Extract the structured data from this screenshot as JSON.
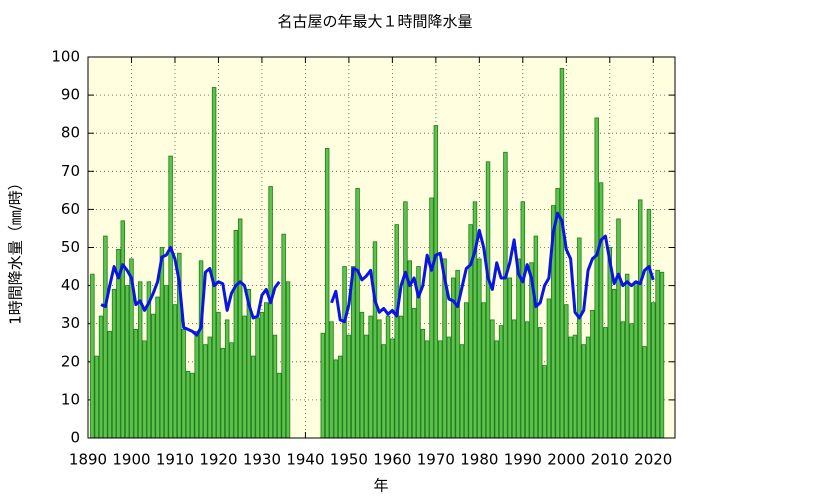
{
  "chart_data": {
    "type": "bar",
    "title": "名古屋の年最大１時間降水量",
    "x_label": "年",
    "y_label": "1時間降水量（㎜/時）",
    "xlim": [
      1890,
      2025
    ],
    "xticks": [
      1890,
      1900,
      1910,
      1920,
      1930,
      1940,
      1950,
      1960,
      1970,
      1980,
      1990,
      2000,
      2010,
      2020
    ],
    "ylim": [
      0,
      100
    ],
    "yticks": [
      0,
      10,
      20,
      30,
      40,
      50,
      60,
      70,
      80,
      90,
      100
    ],
    "grid": true,
    "background": "#ffffe0",
    "x": [
      1891,
      1892,
      1893,
      1894,
      1895,
      1896,
      1897,
      1898,
      1899,
      1900,
      1901,
      1902,
      1903,
      1904,
      1905,
      1906,
      1907,
      1908,
      1909,
      1910,
      1911,
      1912,
      1913,
      1914,
      1915,
      1916,
      1917,
      1918,
      1919,
      1920,
      1921,
      1922,
      1923,
      1924,
      1925,
      1926,
      1927,
      1928,
      1929,
      1930,
      1931,
      1932,
      1933,
      1934,
      1935,
      1936,
      1937,
      1938,
      1939,
      1940,
      1941,
      1942,
      1943,
      1944,
      1945,
      1946,
      1947,
      1948,
      1949,
      1950,
      1951,
      1952,
      1953,
      1954,
      1955,
      1956,
      1957,
      1958,
      1959,
      1960,
      1961,
      1962,
      1963,
      1964,
      1965,
      1966,
      1967,
      1968,
      1969,
      1970,
      1971,
      1972,
      1973,
      1974,
      1975,
      1976,
      1977,
      1978,
      1979,
      1980,
      1981,
      1982,
      1983,
      1984,
      1985,
      1986,
      1987,
      1988,
      1989,
      1990,
      1991,
      1992,
      1993,
      1994,
      1995,
      1996,
      1997,
      1998,
      1999,
      2000,
      2001,
      2002,
      2003,
      2004,
      2005,
      2006,
      2007,
      2008,
      2009,
      2010,
      2011,
      2012,
      2013,
      2014,
      2015,
      2016,
      2017,
      2018,
      2019,
      2020,
      2021,
      2022
    ],
    "series": [
      {
        "type": "bar",
        "color": "#5cc24a",
        "edge": "#1f7a1f",
        "values": [
          43,
          21.5,
          32,
          53,
          28,
          39,
          49.5,
          57,
          40,
          47,
          28.5,
          41,
          25.5,
          41,
          32.5,
          37,
          50,
          40,
          74,
          35,
          48.5,
          28.5,
          17.5,
          17,
          28,
          46.5,
          24.5,
          26.5,
          92,
          33,
          23.5,
          31,
          25,
          54.5,
          57.5,
          32,
          39,
          21.5,
          31.5,
          33,
          35.5,
          66,
          27,
          17,
          53.5,
          41,
          null,
          null,
          null,
          null,
          null,
          null,
          null,
          27.5,
          76,
          30.5,
          20.5,
          21.5,
          45,
          27,
          45,
          65.5,
          33,
          27,
          32,
          51.5,
          31,
          24.5,
          32,
          26,
          56,
          32,
          62,
          46.5,
          34,
          45,
          28.5,
          25.5,
          63,
          82,
          25.5,
          47,
          26.5,
          42,
          44,
          24.5,
          35.5,
          56,
          62,
          47,
          35.5,
          72.5,
          31,
          25.5,
          29.5,
          75,
          42,
          31,
          47,
          62,
          30.5,
          46,
          53,
          29,
          19,
          36.5,
          61,
          65.5,
          97,
          35,
          26.5,
          27,
          52.5,
          24.5,
          26.5,
          33.5,
          84,
          67,
          29,
          50,
          39,
          57.5,
          30.5,
          43,
          30,
          41,
          62.5,
          24,
          60,
          35.5,
          44,
          43.5
        ]
      },
      {
        "type": "line",
        "color": "#0a14e6",
        "values": [
          null,
          null,
          35,
          34.5,
          40,
          45,
          42,
          45.5,
          44,
          42,
          35,
          36,
          33.5,
          35.5,
          38,
          41,
          47.5,
          48,
          50,
          47,
          41,
          29,
          28.5,
          28,
          27,
          29,
          43.5,
          44.5,
          40,
          41,
          40.5,
          33.5,
          38,
          40,
          41,
          40,
          35,
          31.5,
          32,
          37.5,
          39,
          35.5,
          39.5,
          41,
          null,
          null,
          null,
          null,
          null,
          null,
          null,
          null,
          null,
          null,
          null,
          35.5,
          38.5,
          31,
          30.5,
          35,
          44.5,
          44,
          41.5,
          42.5,
          44,
          36,
          33,
          34,
          32.5,
          33.5,
          32,
          40,
          43.5,
          40,
          42,
          37,
          40,
          48,
          44,
          48,
          48.5,
          42,
          36.5,
          36,
          34.5,
          39.5,
          44.5,
          45.5,
          49,
          54.5,
          50,
          42,
          39,
          46,
          42,
          42,
          46,
          52,
          43,
          41,
          45.5,
          42,
          34.5,
          35.5,
          40,
          42,
          54,
          59,
          57,
          49.5,
          47,
          33,
          31.5,
          33.5,
          44,
          47,
          48,
          52,
          53,
          46.5,
          40.5,
          43,
          40,
          41,
          40,
          41,
          40.5,
          44,
          45,
          41.5,
          null,
          null
        ]
      }
    ]
  }
}
